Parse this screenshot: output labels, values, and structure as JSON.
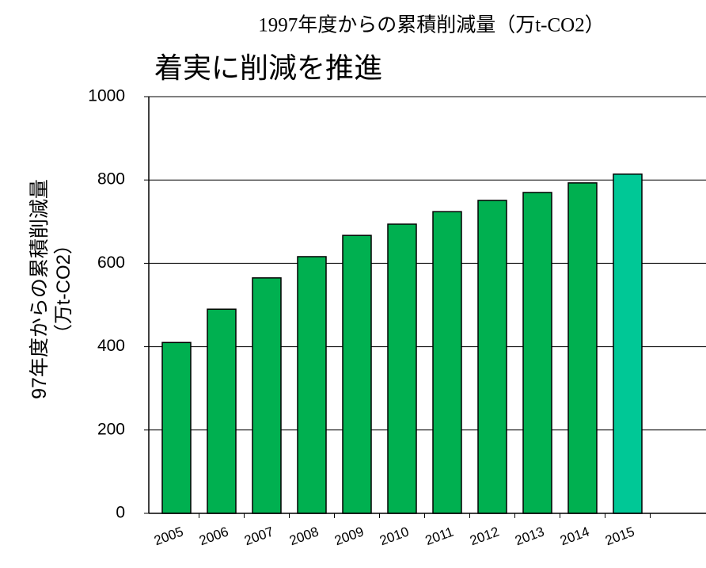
{
  "chart_data": {
    "type": "bar",
    "title": "1997年度からの累積削減量（万t-CO2）",
    "subtitle": "着実に削減を推進",
    "y_label": [
      "97年度からの累積削減量",
      "（万t-CO2）"
    ],
    "categories": [
      "2005",
      "2006",
      "2007",
      "2008",
      "2009",
      "2010",
      "2011",
      "2012",
      "2013",
      "2014",
      "2015"
    ],
    "values": [
      410,
      490,
      565,
      616,
      667,
      694,
      724,
      751,
      770,
      793,
      814
    ],
    "colors": [
      "#00b050",
      "#00b050",
      "#00b050",
      "#00b050",
      "#00b050",
      "#00b050",
      "#00b050",
      "#00b050",
      "#00b050",
      "#00b050",
      "#00c896"
    ],
    "ylim": [
      0,
      1000
    ],
    "yticks": [
      0,
      200,
      400,
      600,
      800,
      1000
    ],
    "grid": true
  }
}
